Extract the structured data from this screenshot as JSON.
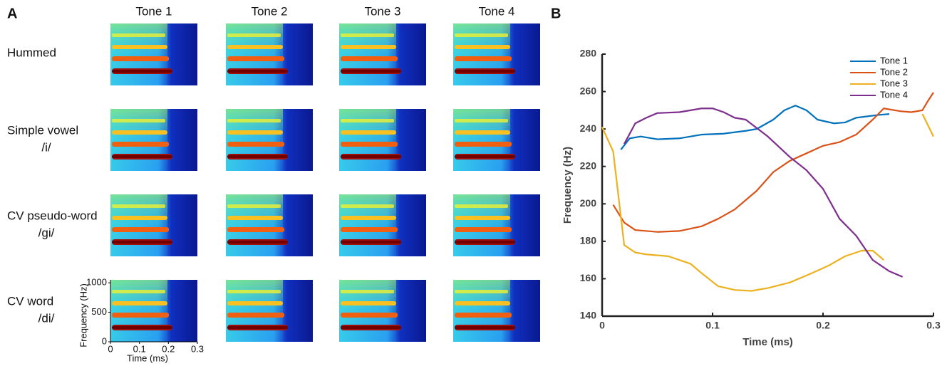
{
  "panel_labels": [
    "A",
    "B"
  ],
  "panel_a": {
    "columns": [
      "Tone 1",
      "Tone 2",
      "Tone 3",
      "Tone 4"
    ],
    "rows": [
      [
        "Hummed"
      ],
      [
        "Simple vowel",
        "/i/"
      ],
      [
        "CV pseudo-word",
        "/gi/"
      ],
      [
        "CV word",
        "/di/"
      ]
    ],
    "ylabel": "Frequency (Hz)",
    "xlabel": "Time (ms)",
    "ylim": [
      0,
      1050
    ],
    "yticks": [
      0,
      500,
      1000
    ],
    "xlim": [
      0,
      0.3
    ],
    "xticks": [
      0,
      0.1,
      0.2,
      0.3
    ]
  },
  "chart_data": {
    "type": "line",
    "xlabel": "Time (ms)",
    "ylabel": "Frequency (Hz)",
    "xlim": [
      0,
      0.3
    ],
    "xticks": [
      0,
      0.1,
      0.2,
      0.3
    ],
    "ylim": [
      140,
      280
    ],
    "yticks": [
      140,
      160,
      180,
      200,
      220,
      240,
      260,
      280
    ],
    "legend": "upper right",
    "series": [
      {
        "name": "Tone 1",
        "color": "#0072bd",
        "x": [
          0.017,
          0.025,
          0.035,
          0.05,
          0.07,
          0.09,
          0.11,
          0.13,
          0.14,
          0.155,
          0.165,
          0.175,
          0.185,
          0.195,
          0.21,
          0.22,
          0.23,
          0.25,
          0.26
        ],
        "values": [
          229,
          235,
          236,
          234.5,
          235,
          237,
          237.5,
          239,
          240,
          245,
          250,
          252.5,
          250,
          245,
          243,
          243.5,
          246,
          247.5,
          248
        ]
      },
      {
        "name": "Tone 2",
        "color": "#d95319",
        "x": [
          0.01,
          0.02,
          0.03,
          0.05,
          0.07,
          0.09,
          0.105,
          0.12,
          0.14,
          0.155,
          0.17,
          0.185,
          0.2,
          0.215,
          0.23,
          0.245,
          0.255,
          0.27,
          0.28,
          0.29,
          0.295,
          0.3
        ],
        "values": [
          199.5,
          190,
          186,
          185,
          185.5,
          188,
          192,
          197,
          207,
          217,
          223,
          227,
          231,
          233,
          237,
          245,
          251,
          249.5,
          249,
          250,
          255,
          259.5
        ]
      },
      {
        "name": "Tone 3",
        "color": "#edb120",
        "x": [
          0,
          0.01,
          0.02,
          0.03,
          0.04,
          0.06,
          0.08,
          0.09,
          0.105,
          0.12,
          0.135,
          0.15,
          0.17,
          0.19,
          0.205,
          0.22,
          0.235,
          0.245,
          0.255,
          0.27,
          0.29,
          0.295,
          0.3
        ],
        "values": [
          241,
          228,
          178,
          174,
          173,
          172,
          168,
          163,
          156,
          154,
          153.5,
          155,
          158,
          163,
          167,
          172,
          175,
          175,
          170,
          null,
          248,
          242,
          236
        ]
      },
      {
        "name": "Tone 4",
        "color": "#7e2f8e",
        "x": [
          0.02,
          0.03,
          0.04,
          0.05,
          0.07,
          0.09,
          0.1,
          0.11,
          0.12,
          0.13,
          0.15,
          0.17,
          0.185,
          0.2,
          0.215,
          0.23,
          0.245,
          0.26,
          0.272
        ],
        "values": [
          232,
          243,
          246,
          248.5,
          249,
          251,
          251,
          249,
          246,
          245,
          236,
          225,
          218,
          208,
          192,
          183,
          170,
          164,
          161
        ]
      }
    ]
  }
}
